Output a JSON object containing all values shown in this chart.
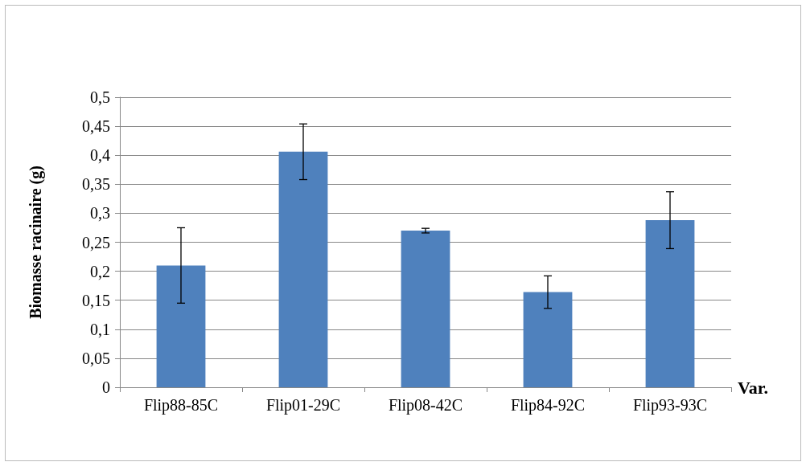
{
  "chart_data": {
    "type": "bar",
    "xlabel": "Var.",
    "ylabel": "Biomasse racinaire (g)",
    "categories": [
      "Flip88-85C",
      "Flip01-29C",
      "Flip08-42C",
      "Flip84-92C",
      "Flip93-93C"
    ],
    "values": [
      0.21,
      0.406,
      0.27,
      0.164,
      0.288
    ],
    "errors": [
      0.065,
      0.048,
      0.004,
      0.028,
      0.049
    ],
    "color": "#4f81bd",
    "ylim": [
      0,
      0.5
    ],
    "yticks": [
      0,
      {
        "value": 0.05,
        "label": "0,05"
      },
      {
        "value": 0.1,
        "label": "0,1"
      },
      {
        "value": 0.15,
        "label": "0,15"
      },
      {
        "value": 0.2,
        "label": "0,2"
      },
      {
        "value": 0.25,
        "label": "0,25"
      },
      {
        "value": 0.3,
        "label": "0,3"
      },
      {
        "value": 0.35,
        "label": "0,35"
      },
      {
        "value": 0.4,
        "label": "0,4"
      },
      {
        "value": 0.45,
        "label": "0,45"
      },
      {
        "value": 0.5,
        "label": "0,5"
      }
    ],
    "grid": "y"
  }
}
